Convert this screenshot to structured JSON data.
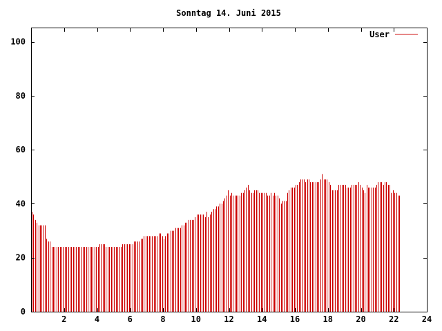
{
  "chart_data": {
    "type": "bar",
    "title": "Sonntag 14. Juni 2015",
    "xlabel": "",
    "ylabel": "",
    "xlim": [
      0,
      24
    ],
    "ylim": [
      0,
      105
    ],
    "xticks": [
      2,
      4,
      6,
      8,
      10,
      12,
      14,
      16,
      18,
      20,
      22,
      24
    ],
    "xtick_labels": [
      "2",
      "4",
      "6",
      "8",
      "10",
      "12",
      "14",
      "16",
      "18",
      "20",
      "22",
      "24"
    ],
    "yticks": [
      0,
      20,
      40,
      60,
      80,
      100
    ],
    "ytick_labels": [
      "0",
      "20",
      "40",
      "60",
      "80",
      "100"
    ],
    "grid": false,
    "legend_position": "top-right",
    "series": [
      {
        "name": "User",
        "color": "#cc0000",
        "interval_hours": 0.1,
        "x_start": 0,
        "values": [
          37,
          36,
          34,
          33,
          32,
          32,
          32,
          32,
          32,
          27,
          26,
          26,
          24,
          24,
          24,
          24,
          24,
          24,
          24,
          24,
          24,
          24,
          24,
          24,
          24,
          24,
          24,
          24,
          24,
          24,
          24,
          24,
          24,
          24,
          24,
          24,
          24,
          24,
          24,
          24,
          24,
          25,
          25,
          25,
          25,
          24,
          24,
          24,
          24,
          24,
          24,
          24,
          24,
          24,
          24,
          25,
          25,
          25,
          25,
          25,
          25,
          25,
          26,
          26,
          26,
          26,
          27,
          27,
          28,
          28,
          28,
          28,
          28,
          28,
          28,
          28,
          28,
          29,
          29,
          28,
          27,
          28,
          29,
          29,
          30,
          30,
          30,
          31,
          31,
          31,
          31,
          32,
          32,
          33,
          33,
          34,
          34,
          34,
          34,
          35,
          36,
          36,
          36,
          36,
          36,
          35,
          37,
          35,
          36,
          37,
          38,
          38,
          39,
          39,
          40,
          40,
          41,
          42,
          43,
          45,
          43,
          44,
          43,
          43,
          43,
          43,
          43,
          44,
          44,
          45,
          46,
          47,
          45,
          44,
          44,
          45,
          45,
          45,
          44,
          44,
          44,
          44,
          44,
          43,
          43,
          44,
          43,
          44,
          43,
          43,
          42,
          40,
          41,
          41,
          41,
          44,
          45,
          46,
          46,
          46,
          47,
          47,
          48,
          49,
          49,
          49,
          48,
          49,
          49,
          48,
          48,
          48,
          48,
          48,
          48,
          49,
          51,
          49,
          49,
          49,
          48,
          47,
          45,
          45,
          45,
          45,
          47,
          47,
          47,
          47,
          47,
          46,
          46,
          46,
          47,
          47,
          47,
          47,
          48,
          47,
          46,
          45,
          44,
          47,
          46,
          46,
          46,
          46,
          46,
          47,
          48,
          48,
          48,
          47,
          48,
          48,
          47,
          47,
          44,
          45,
          44,
          44,
          43,
          43
        ]
      }
    ]
  }
}
